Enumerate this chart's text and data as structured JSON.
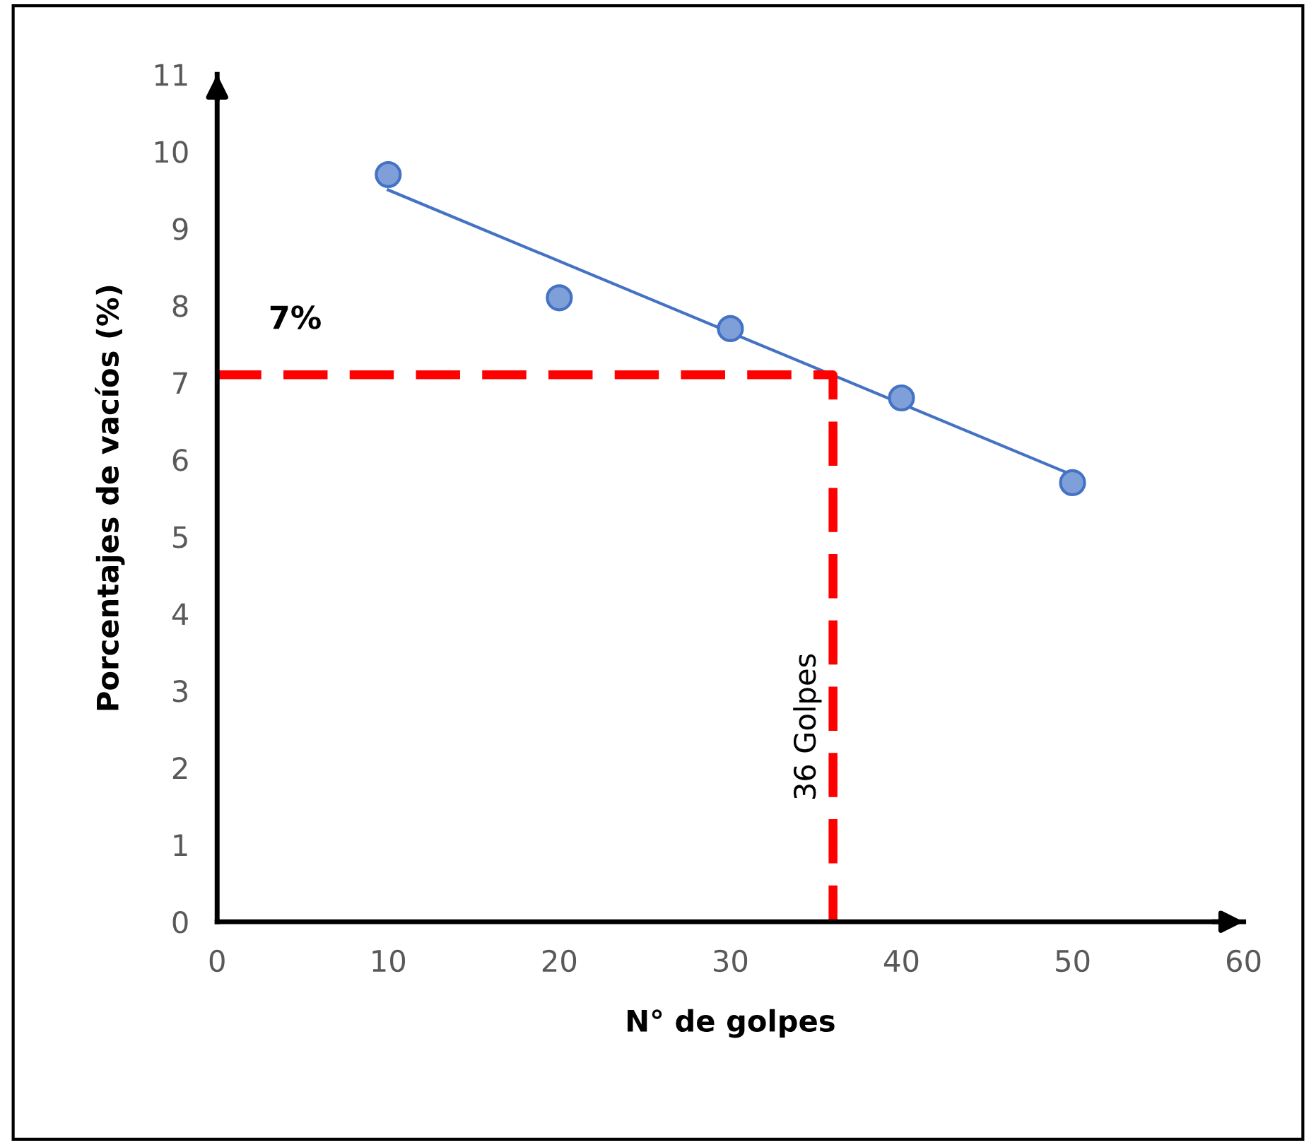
{
  "chart_data": {
    "type": "scatter",
    "xlabel": "N° de golpes",
    "ylabel": "Porcentajes de vacíos (%)",
    "x": [
      10,
      20,
      30,
      40,
      50
    ],
    "series": [
      {
        "color": "#7f9fd8",
        "marker": "circle",
        "values": [
          9.7,
          8.1,
          7.7,
          6.8,
          5.7
        ]
      },
      {
        "type": "line",
        "color": "#4472c4",
        "marker": "none",
        "x": [
          10,
          50
        ],
        "values": [
          9.5,
          5.8
        ]
      },
      {
        "type": "line",
        "color": "#ff0000",
        "marker": "none",
        "line_style": "dashed",
        "x": [
          0,
          36,
          36
        ],
        "values": [
          7.1,
          7.1,
          0
        ]
      }
    ],
    "xlim": [
      0,
      60
    ],
    "xticks": [
      0,
      10,
      20,
      30,
      40,
      50,
      60
    ],
    "ylim": [
      0,
      11
    ],
    "yticks": [
      0,
      1,
      2,
      3,
      4,
      5,
      6,
      7,
      8,
      9,
      10,
      11
    ],
    "grid": false,
    "annotations": [
      "7%",
      "36 Golpes"
    ]
  }
}
